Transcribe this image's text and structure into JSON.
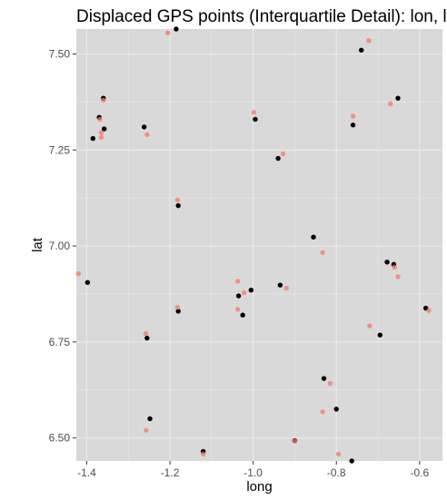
{
  "chart_data": {
    "type": "scatter",
    "title": "Displaced GPS points (Interquartile Detail): lon, lat",
    "xlabel": "long",
    "ylabel": "lat",
    "xlim": [
      -1.425,
      -0.545
    ],
    "ylim": [
      6.44,
      7.565
    ],
    "x_ticks": [
      -1.4,
      -1.2,
      -1.0,
      -0.8,
      -0.6
    ],
    "x_tick_labels": [
      "-1.4",
      "-1.2",
      "-1.0",
      "-0.8",
      "-0.6"
    ],
    "y_ticks": [
      6.5,
      6.75,
      7.0,
      7.25,
      7.5
    ],
    "y_tick_labels": [
      "6.50",
      "6.75",
      "7.00",
      "7.25",
      "7.50"
    ],
    "grid": true,
    "legend": "none",
    "colors": {
      "panel": "#d9d9d9",
      "grid": "#ebebeb",
      "original": "#000000",
      "displaced": "#f8766d"
    },
    "series": [
      {
        "values": [
          {
            "x": -1.398,
            "y": 6.905
          },
          {
            "x": -1.385,
            "y": 7.28
          },
          {
            "x": -1.37,
            "y": 7.335
          },
          {
            "x": -1.36,
            "y": 7.385
          },
          {
            "x": -1.358,
            "y": 7.305
          },
          {
            "x": -1.262,
            "y": 7.31
          },
          {
            "x": -1.255,
            "y": 6.76
          },
          {
            "x": -1.248,
            "y": 6.55
          },
          {
            "x": -1.185,
            "y": 7.565
          },
          {
            "x": -1.18,
            "y": 7.105
          },
          {
            "x": -1.18,
            "y": 6.83
          },
          {
            "x": -1.12,
            "y": 6.465
          },
          {
            "x": -1.035,
            "y": 6.87
          },
          {
            "x": -1.025,
            "y": 6.82
          },
          {
            "x": -1.005,
            "y": 6.885
          },
          {
            "x": -0.995,
            "y": 7.33
          },
          {
            "x": -0.94,
            "y": 7.228
          },
          {
            "x": -0.935,
            "y": 6.898
          },
          {
            "x": -0.9,
            "y": 6.493
          },
          {
            "x": -0.855,
            "y": 7.023
          },
          {
            "x": -0.83,
            "y": 6.655
          },
          {
            "x": -0.8,
            "y": 6.575
          },
          {
            "x": -0.76,
            "y": 7.315
          },
          {
            "x": -0.763,
            "y": 6.44
          },
          {
            "x": -0.74,
            "y": 7.51
          },
          {
            "x": -0.695,
            "y": 6.768
          },
          {
            "x": -0.678,
            "y": 6.958
          },
          {
            "x": -0.662,
            "y": 6.952
          },
          {
            "x": -0.652,
            "y": 7.385
          },
          {
            "x": -0.585,
            "y": 6.838
          }
        ]
      },
      {
        "values": [
          {
            "x": -1.42,
            "y": 6.928
          },
          {
            "x": -1.368,
            "y": 7.33
          },
          {
            "x": -1.365,
            "y": 7.295
          },
          {
            "x": -1.365,
            "y": 7.283
          },
          {
            "x": -1.36,
            "y": 7.38
          },
          {
            "x": -1.258,
            "y": 6.772
          },
          {
            "x": -1.255,
            "y": 7.29
          },
          {
            "x": -1.257,
            "y": 6.52
          },
          {
            "x": -1.205,
            "y": 7.555
          },
          {
            "x": -1.182,
            "y": 7.12
          },
          {
            "x": -1.182,
            "y": 6.84
          },
          {
            "x": -1.12,
            "y": 6.458
          },
          {
            "x": -1.037,
            "y": 6.908
          },
          {
            "x": -1.037,
            "y": 6.835
          },
          {
            "x": -1.022,
            "y": 6.878
          },
          {
            "x": -0.998,
            "y": 7.348
          },
          {
            "x": -0.928,
            "y": 7.24
          },
          {
            "x": -0.92,
            "y": 6.89
          },
          {
            "x": -0.9,
            "y": 6.492
          },
          {
            "x": -0.833,
            "y": 6.983
          },
          {
            "x": -0.833,
            "y": 6.568
          },
          {
            "x": -0.815,
            "y": 6.642
          },
          {
            "x": -0.795,
            "y": 6.458
          },
          {
            "x": -0.76,
            "y": 7.338
          },
          {
            "x": -0.722,
            "y": 7.535
          },
          {
            "x": -0.72,
            "y": 6.792
          },
          {
            "x": -0.67,
            "y": 7.37
          },
          {
            "x": -0.66,
            "y": 6.945
          },
          {
            "x": -0.652,
            "y": 6.92
          },
          {
            "x": -0.578,
            "y": 6.832
          }
        ]
      }
    ]
  }
}
